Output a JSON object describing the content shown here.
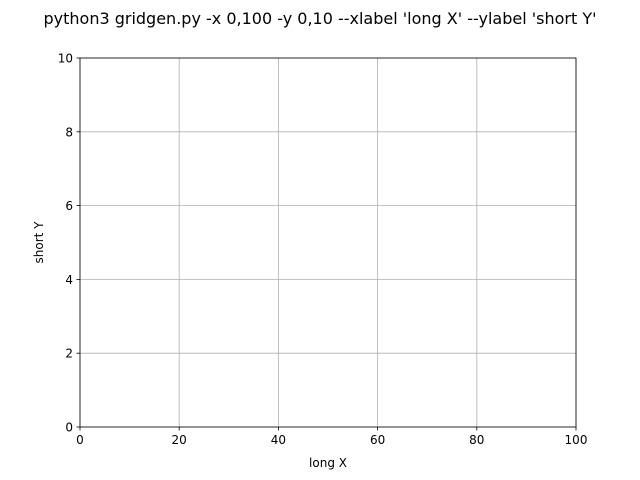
{
  "chart_data": {
    "type": "line",
    "title": "python3 gridgen.py -x 0,100 -y 0,10 --xlabel 'long X' --ylabel 'short Y'",
    "xlabel": "long X",
    "ylabel": "short Y",
    "xlim": [
      0,
      100
    ],
    "ylim": [
      0,
      10
    ],
    "xticks": [
      0,
      20,
      40,
      60,
      80,
      100
    ],
    "yticks": [
      0,
      2,
      4,
      6,
      8,
      10
    ],
    "grid": true,
    "series": []
  }
}
